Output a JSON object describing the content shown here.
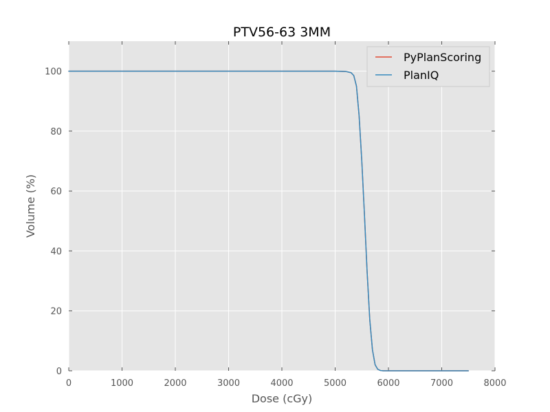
{
  "chart_data": {
    "type": "line",
    "title": "PTV56-63 3MM",
    "xlabel": "Dose (cGy)",
    "ylabel": "Volume (%)",
    "xlim": [
      0,
      8000
    ],
    "ylim": [
      0,
      110
    ],
    "xticks": [
      0,
      1000,
      2000,
      3000,
      4000,
      5000,
      6000,
      7000,
      8000
    ],
    "yticks": [
      0,
      20,
      40,
      60,
      80,
      100
    ],
    "grid": true,
    "legend_position": "top-right",
    "series": [
      {
        "name": "PyPlanScoring",
        "color": "#e24a33",
        "points": [
          [
            0,
            100
          ],
          [
            5000,
            100
          ],
          [
            5200,
            99.9
          ],
          [
            5300,
            99.5
          ],
          [
            5350,
            98.5
          ],
          [
            5400,
            95
          ],
          [
            5450,
            85
          ],
          [
            5500,
            70
          ],
          [
            5550,
            52
          ],
          [
            5600,
            33
          ],
          [
            5650,
            17
          ],
          [
            5700,
            7
          ],
          [
            5750,
            2
          ],
          [
            5800,
            0.5
          ],
          [
            5850,
            0.1
          ],
          [
            5900,
            0
          ],
          [
            7500,
            0
          ]
        ]
      },
      {
        "name": "PlanIQ",
        "color": "#348abd",
        "points": [
          [
            0,
            100
          ],
          [
            5000,
            100
          ],
          [
            5200,
            99.9
          ],
          [
            5300,
            99.5
          ],
          [
            5350,
            98.5
          ],
          [
            5400,
            95
          ],
          [
            5450,
            85
          ],
          [
            5500,
            70
          ],
          [
            5550,
            52
          ],
          [
            5600,
            33
          ],
          [
            5650,
            17
          ],
          [
            5700,
            7
          ],
          [
            5750,
            2
          ],
          [
            5800,
            0.5
          ],
          [
            5850,
            0.1
          ],
          [
            5900,
            0
          ],
          [
            7500,
            0
          ]
        ]
      }
    ]
  }
}
